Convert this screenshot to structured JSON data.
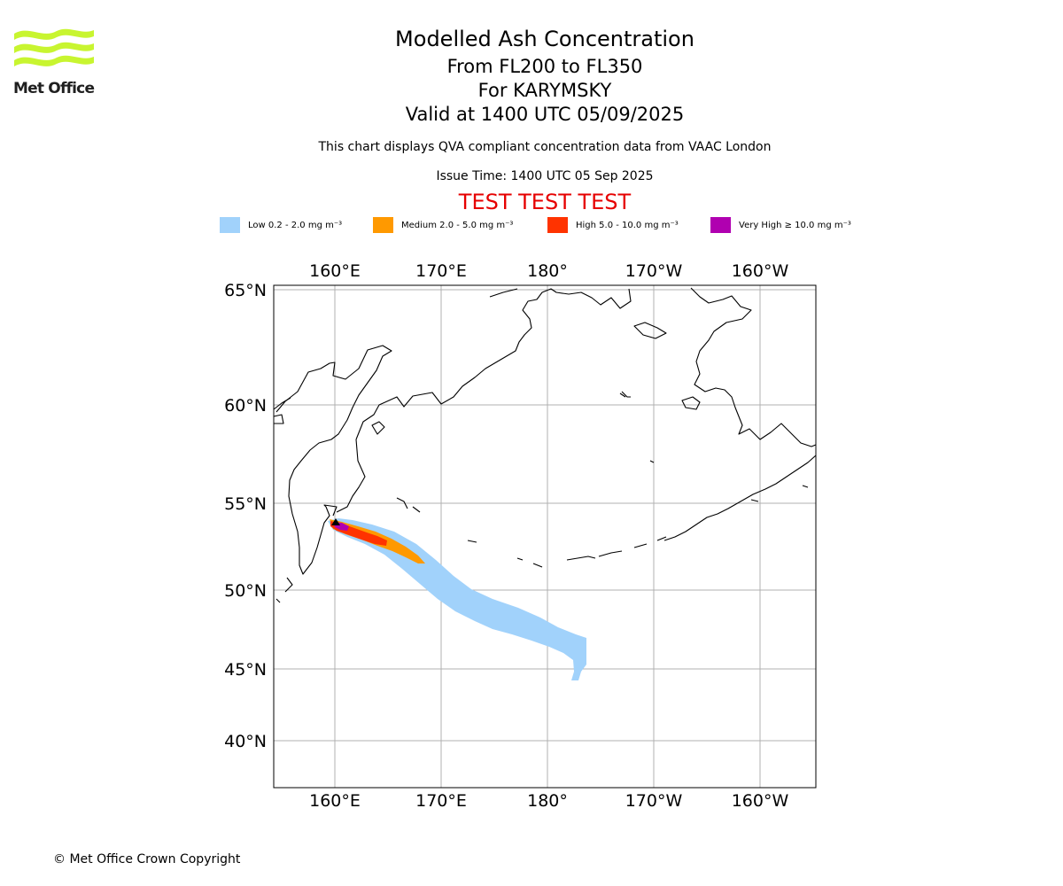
{
  "header": {
    "brand_name": "Met Office",
    "title": "Modelled Ash Concentration",
    "level_range": "From FL200 to FL350",
    "volcano": "For KARYMSKY",
    "valid_time": "Valid at 1400 UTC 05/09/2025",
    "description": "This chart displays QVA compliant concentration data from VAAC London",
    "issue_time": "Issue Time: 1400 UTC 05 Sep 2025",
    "test_banner": "TEST TEST TEST"
  },
  "legend": [
    {
      "label": "Low 0.2 - 2.0 mg m⁻³",
      "color": "#a1d2fb"
    },
    {
      "label": "Medium 2.0 - 5.0 mg m⁻³",
      "color": "#ff9900"
    },
    {
      "label": "High 5.0 - 10.0 mg m⁻³",
      "color": "#ff3300"
    },
    {
      "label": "Very High ≥ 10.0 mg m⁻³",
      "color": "#b000b0"
    }
  ],
  "map": {
    "lon_labels": [
      "160°E",
      "170°E",
      "180°",
      "170°W",
      "160°W"
    ],
    "lat_labels": [
      "65°N",
      "60°N",
      "55°N",
      "50°N",
      "45°N",
      "40°N"
    ],
    "graticule": "on",
    "volcano_marker": "triangle"
  },
  "footer": {
    "copyright": "© Met Office Crown Copyright"
  }
}
